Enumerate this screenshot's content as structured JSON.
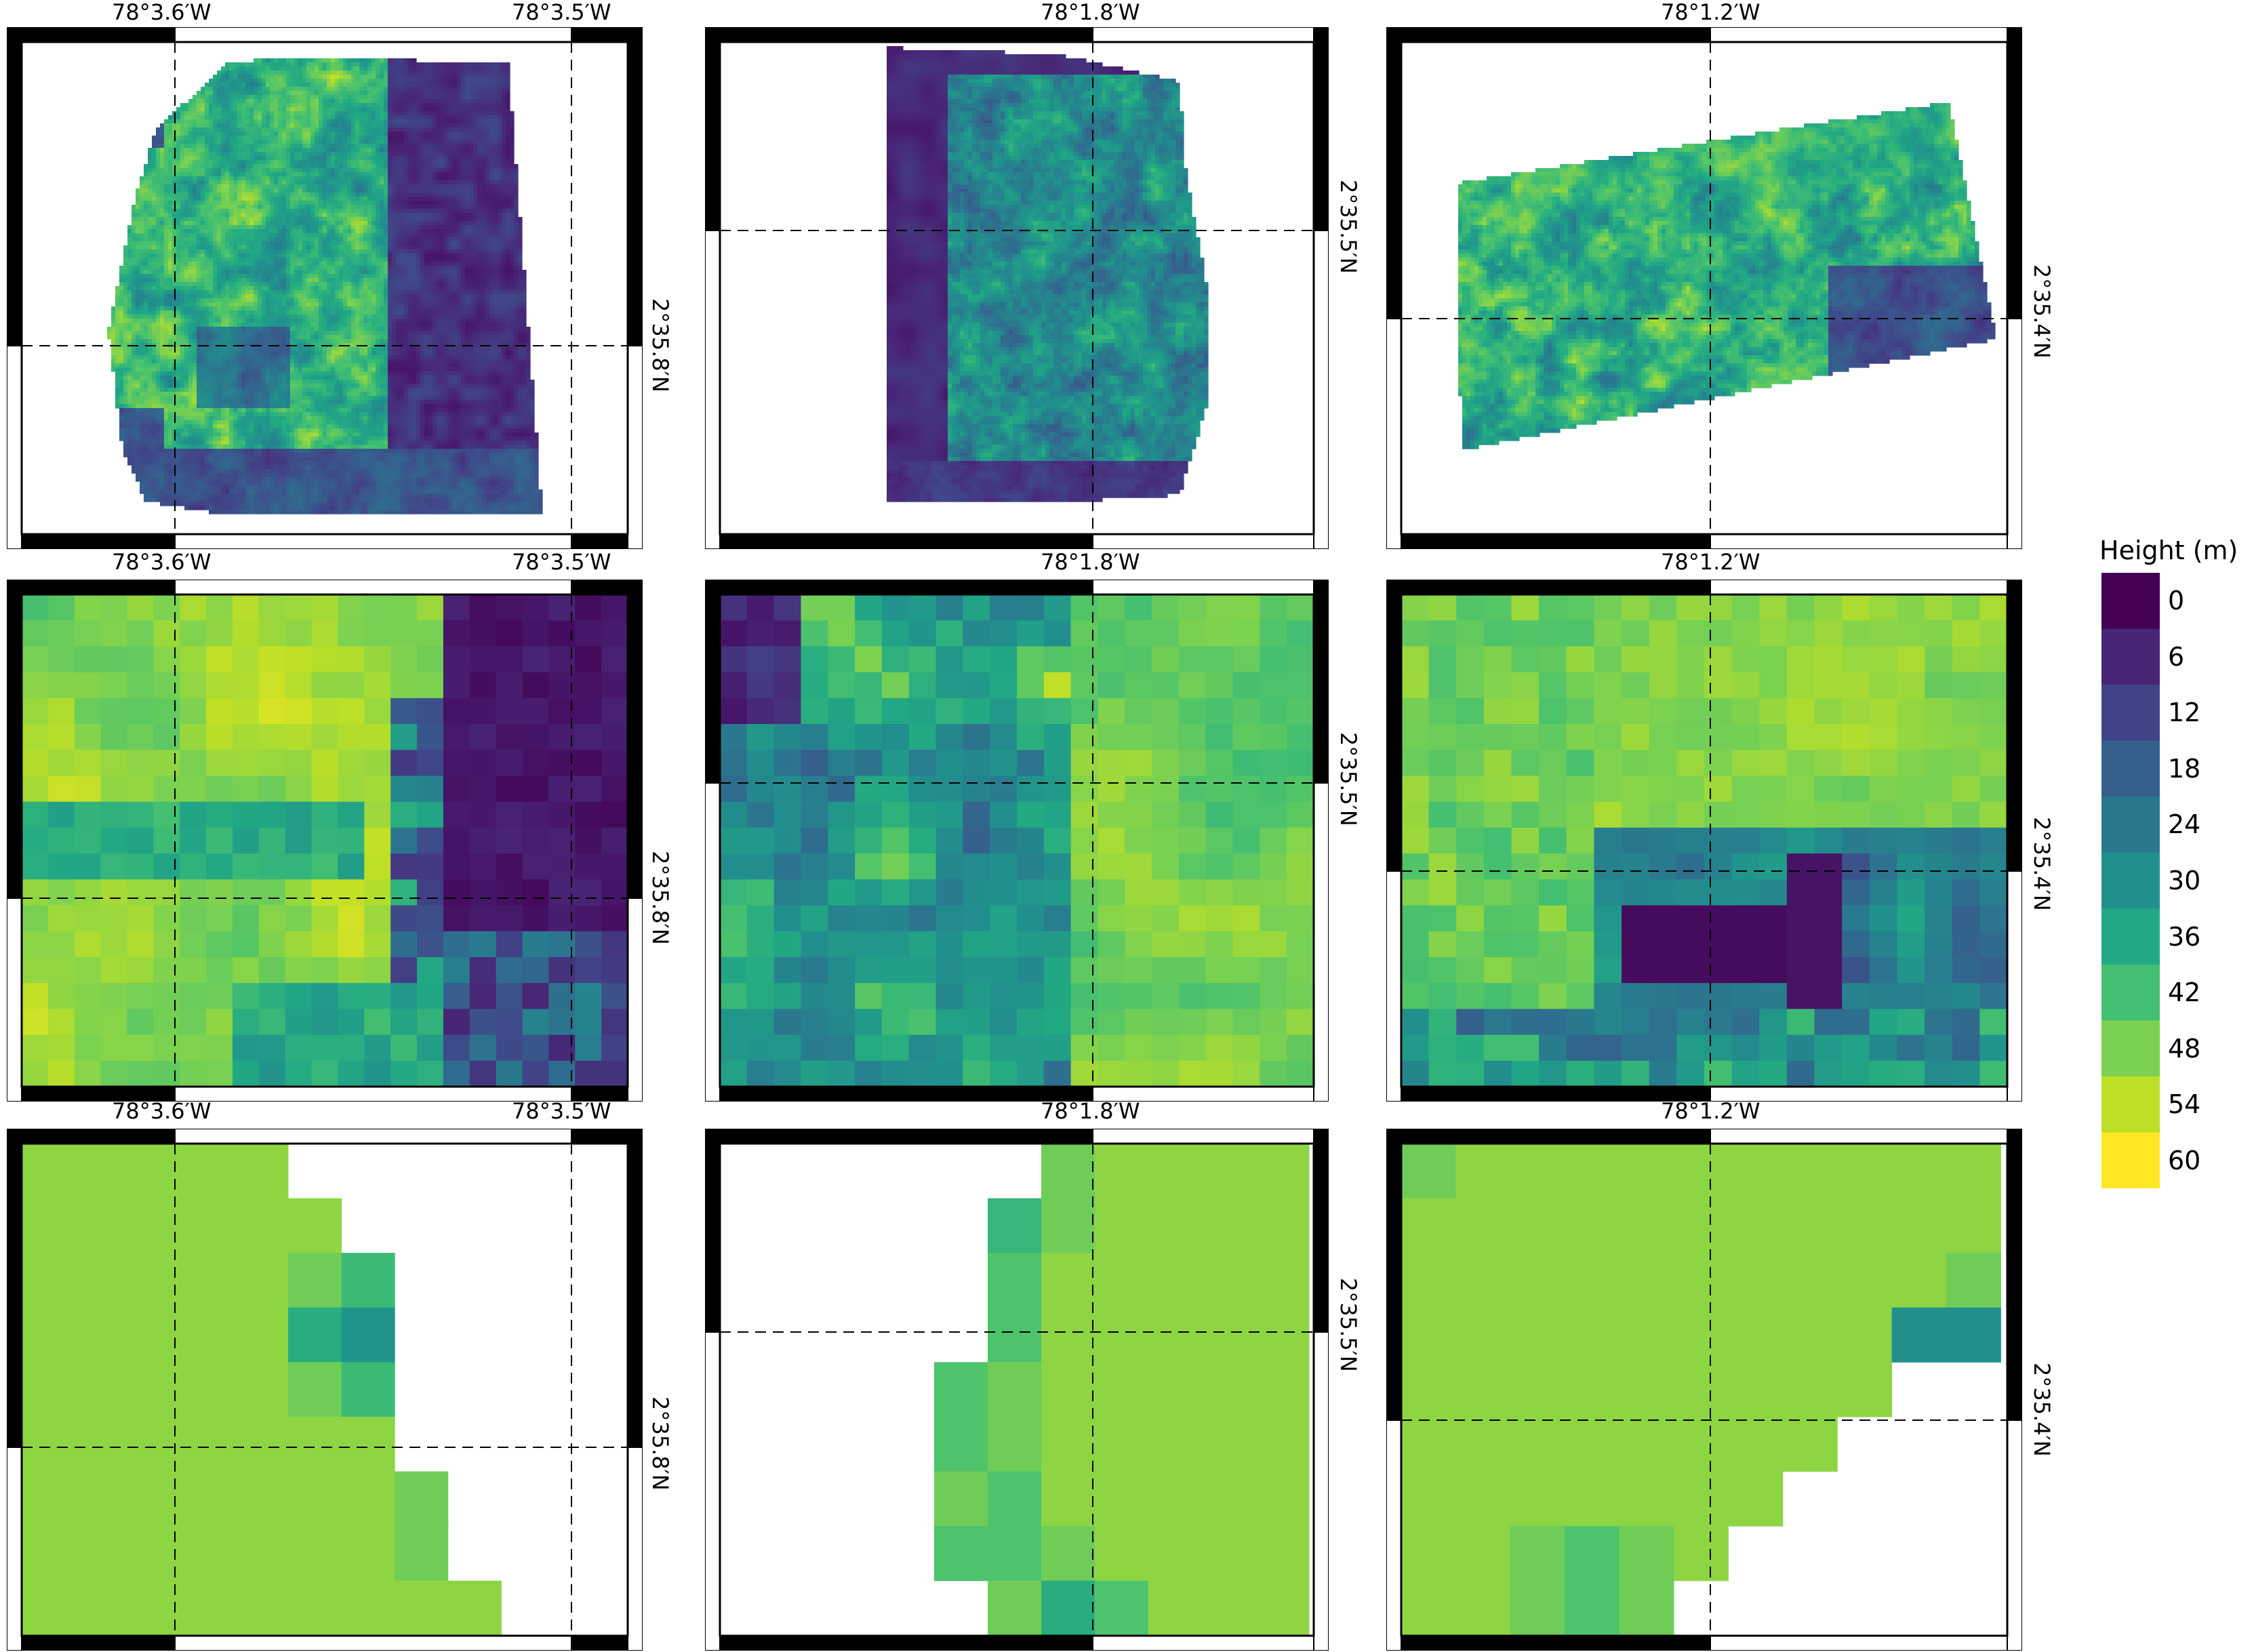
{
  "figure": {
    "rows": 3,
    "cols": 3
  },
  "panel_labels": {
    "col1": {
      "lon_left": "78°3.6′W",
      "lon_right": "78°3.5′W",
      "lat": "2°35.8′N"
    },
    "col2": {
      "lon_mid": "78°1.8′W",
      "lat": "2°35.5′N"
    },
    "col3": {
      "lon_mid": "78°1.2′W",
      "lat": "2°35.4′N"
    }
  },
  "colorbar": {
    "title": "Height (m)",
    "ticks": [
      "0",
      "6",
      "12",
      "18",
      "24",
      "30",
      "36",
      "42",
      "48",
      "54",
      "60"
    ],
    "colors": [
      "#440154",
      "#482576",
      "#414487",
      "#35608d",
      "#2a788e",
      "#21908d",
      "#22a884",
      "#43bf71",
      "#7ad151",
      "#bddf26",
      "#fde725"
    ]
  },
  "colors": {
    "frame": "#000000",
    "background": "#ffffff",
    "nodata": "#ffffff"
  }
}
